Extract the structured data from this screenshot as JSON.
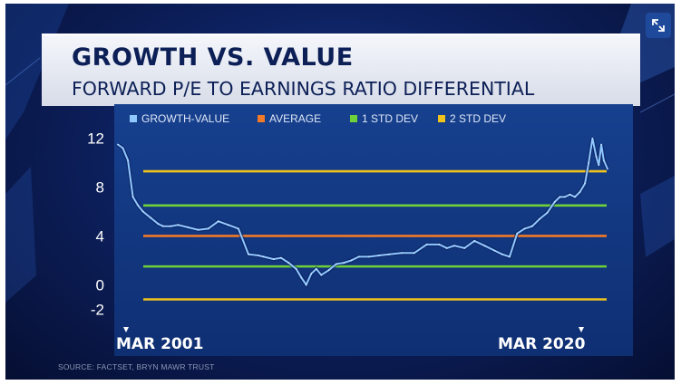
{
  "header": {
    "title": "GROWTH VS. VALUE",
    "subtitle": "FORWARD P/E TO EARNINGS RATIO DIFFERENTIAL"
  },
  "source": "SOURCE: FACTSET, BRYN MAWR TRUST",
  "colors": {
    "background": "#0d2160",
    "panel": "#123a85",
    "title_text": "#0c1f56",
    "growth_value_line": "#8fc7ff",
    "average": "#f07a28",
    "one_std_dev": "#6fd13a",
    "two_std_dev": "#f0c21c"
  },
  "icons": {
    "expand": "expand-arrows-icon"
  },
  "chart_data": {
    "type": "line",
    "title": "GROWTH VS. VALUE",
    "subtitle": "FORWARD P/E TO EARNINGS RATIO DIFFERENTIAL",
    "legend": {
      "placement": "top",
      "entries": [
        "GROWTH-VALUE",
        "AVERAGE",
        "1 STD DEV",
        "2 STD DEV"
      ]
    },
    "x_labels": [
      "MAR 2001",
      "MAR 2020"
    ],
    "x_range": [
      2001.2,
      2020.7
    ],
    "yticks": [
      12,
      8,
      4,
      0,
      -2
    ],
    "ylim": [
      -2.5,
      12.5
    ],
    "grid": false,
    "series": [
      {
        "name": "GROWTH-VALUE",
        "x": [
          2001.2,
          2001.4,
          2001.6,
          2001.8,
          2002.0,
          2002.2,
          2002.5,
          2002.8,
          2003.0,
          2003.3,
          2003.6,
          2004.0,
          2004.4,
          2004.8,
          2005.2,
          2005.6,
          2006.0,
          2006.4,
          2006.8,
          2007.0,
          2007.4,
          2007.7,
          2008.0,
          2008.3,
          2008.5,
          2008.7,
          2008.9,
          2009.1,
          2009.3,
          2009.6,
          2009.9,
          2010.2,
          2010.5,
          2010.8,
          2011.2,
          2011.6,
          2012.0,
          2012.5,
          2013.0,
          2013.5,
          2014.0,
          2014.3,
          2014.6,
          2015.0,
          2015.4,
          2015.8,
          2016.2,
          2016.5,
          2016.8,
          2017.1,
          2017.4,
          2017.7,
          2018.0,
          2018.3,
          2018.6,
          2018.8,
          2019.0,
          2019.2,
          2019.4,
          2019.6,
          2019.8,
          2019.95,
          2020.1,
          2020.25,
          2020.35,
          2020.45,
          2020.55,
          2020.7
        ],
        "y": [
          11.5,
          11.2,
          10.2,
          7.2,
          6.5,
          6.0,
          5.5,
          5.0,
          4.8,
          4.8,
          4.9,
          4.7,
          4.5,
          4.6,
          5.2,
          4.9,
          4.6,
          2.5,
          2.4,
          2.3,
          2.1,
          2.2,
          1.8,
          1.3,
          0.6,
          0.0,
          0.9,
          1.3,
          0.8,
          1.2,
          1.7,
          1.8,
          2.0,
          2.3,
          2.3,
          2.4,
          2.5,
          2.6,
          2.6,
          3.3,
          3.3,
          3.0,
          3.2,
          3.0,
          3.6,
          3.2,
          2.8,
          2.5,
          2.3,
          4.2,
          4.6,
          4.8,
          5.4,
          5.9,
          6.8,
          7.2,
          7.2,
          7.4,
          7.2,
          7.6,
          8.3,
          10.0,
          12.0,
          10.5,
          9.8,
          11.5,
          10.2,
          9.5
        ]
      },
      {
        "name": "AVERAGE",
        "constant": 4.0
      },
      {
        "name": "1 STD DEV",
        "constant_values": [
          6.5,
          1.5
        ]
      },
      {
        "name": "2 STD DEV",
        "constant_values": [
          9.3,
          -1.2
        ]
      }
    ]
  }
}
